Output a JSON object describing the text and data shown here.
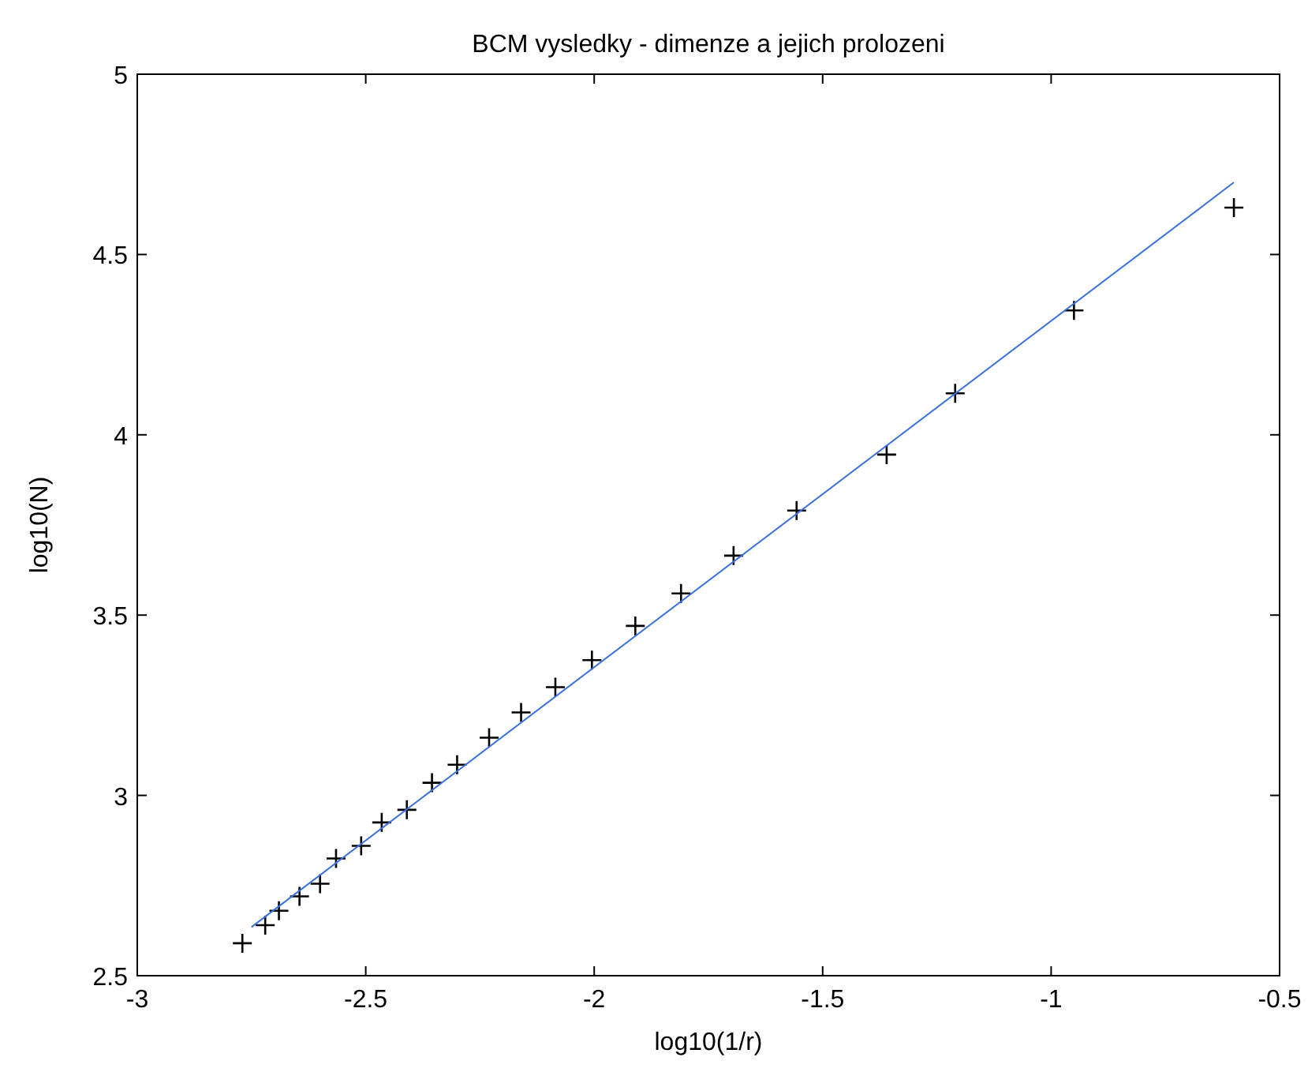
{
  "chart_data": {
    "type": "scatter",
    "title": "BCM vysledky - dimenze a jejich prolozeni",
    "xlabel": "log10(1/r)",
    "ylabel": "log10(N)",
    "xlim": [
      -3,
      -0.5
    ],
    "xticks": [
      -3,
      -2.5,
      -2,
      -1.5,
      -1,
      -0.5
    ],
    "ylim": [
      2.5,
      5
    ],
    "yticks": [
      2.5,
      3,
      3.5,
      4,
      4.5,
      5
    ],
    "grid": false,
    "series": [
      {
        "color": "#000000",
        "marker": "cross",
        "x": [
          -2.77,
          -2.72,
          -2.69,
          -2.645,
          -2.6,
          -2.565,
          -2.51,
          -2.465,
          -2.41,
          -2.355,
          -2.3,
          -2.23,
          -2.16,
          -2.085,
          -2.005,
          -1.91,
          -1.81,
          -1.695,
          -1.557,
          -1.36,
          -1.21,
          -0.95,
          -0.6
        ],
        "values": [
          2.59,
          2.64,
          2.68,
          2.72,
          2.755,
          2.825,
          2.86,
          2.925,
          2.96,
          3.035,
          3.085,
          3.16,
          3.23,
          3.3,
          3.375,
          3.47,
          3.56,
          3.665,
          3.79,
          3.945,
          4.115,
          4.345,
          4.63
        ]
      },
      {
        "type": "line",
        "color": "#3a70e0",
        "marker": "none",
        "line_style": "solid",
        "x": [
          -2.75,
          -0.6
        ],
        "values": [
          2.635,
          4.7
        ]
      }
    ]
  }
}
